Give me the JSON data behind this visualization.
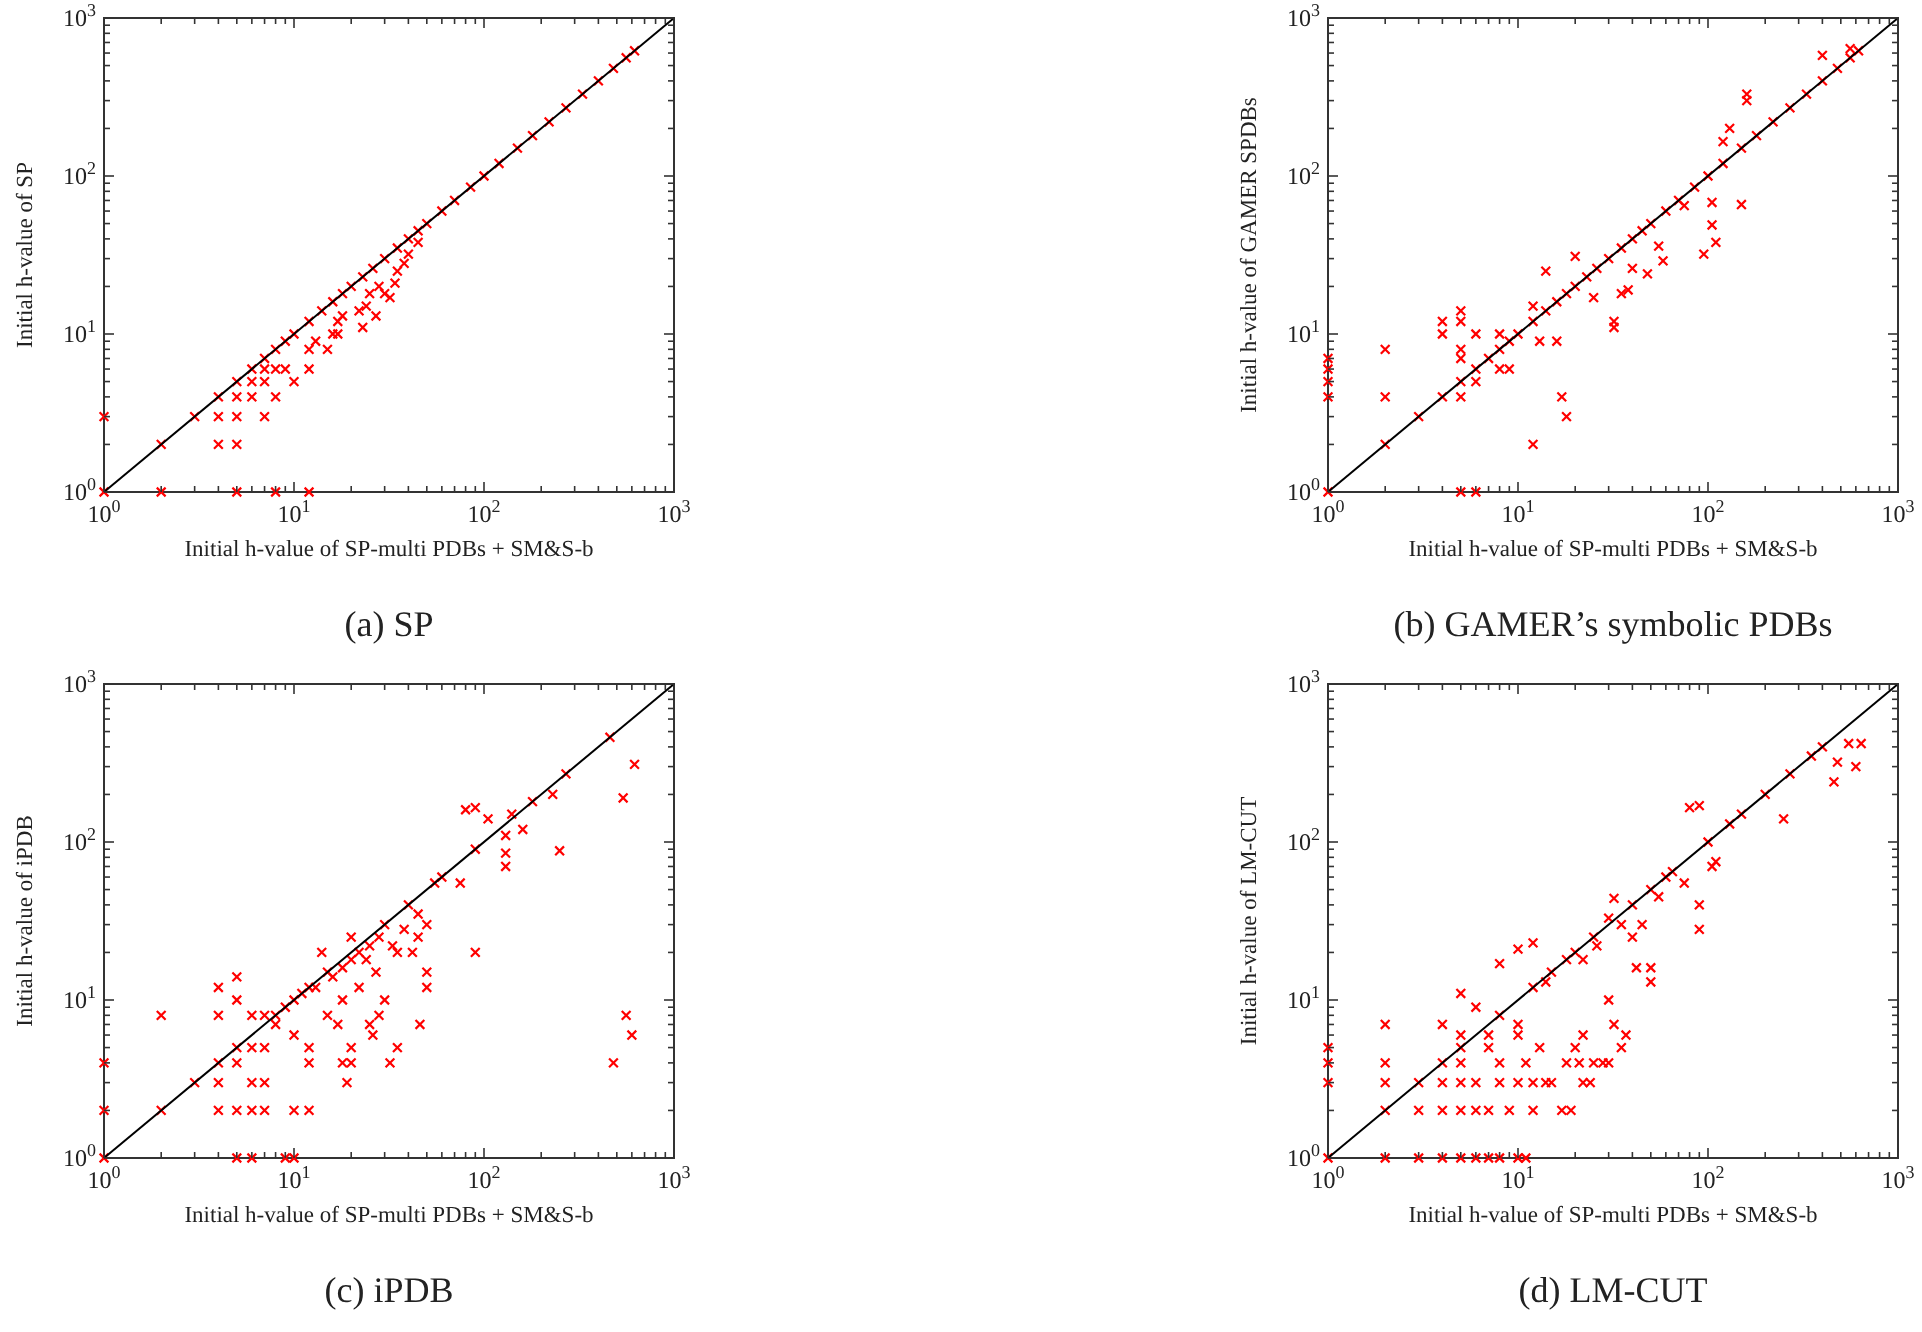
{
  "chart_data": [
    {
      "type": "scatter",
      "title": "(a) SP",
      "xlabel": "Initial h-value of SP-multi PDBs + SM&S-b",
      "ylabel": "Initial h-value of SP",
      "log": "xy",
      "xlim": [
        1,
        1000
      ],
      "ylim": [
        1,
        1000
      ],
      "xticks": [
        {
          "value": 1,
          "label": "10$^{0}$"
        },
        {
          "value": 2,
          "label": null
        },
        {
          "value": 3,
          "label": null
        },
        {
          "value": 4,
          "label": null
        },
        {
          "value": 5,
          "label": null
        },
        {
          "value": 6,
          "label": null
        },
        {
          "value": 7,
          "label": null
        },
        {
          "value": 8,
          "label": null
        },
        {
          "value": 9,
          "label": null
        },
        {
          "value": 10,
          "label": "10$^{1}$"
        },
        {
          "value": 20,
          "label": null
        },
        {
          "value": 30,
          "label": null
        },
        {
          "value": 40,
          "label": null
        },
        {
          "value": 50,
          "label": null
        },
        {
          "value": 60,
          "label": null
        },
        {
          "value": 70,
          "label": null
        },
        {
          "value": 80,
          "label": null
        },
        {
          "value": 90,
          "label": null
        },
        {
          "value": 100,
          "label": "10$^{2}$"
        },
        {
          "value": 200,
          "label": null
        },
        {
          "value": 300,
          "label": null
        },
        {
          "value": 400,
          "label": null
        },
        {
          "value": 500,
          "label": null
        },
        {
          "value": 600,
          "label": null
        },
        {
          "value": 700,
          "label": null
        },
        {
          "value": 800,
          "label": null
        },
        {
          "value": 900,
          "label": null
        },
        {
          "value": 1000,
          "label": "10$^{3}$"
        }
      ],
      "yticks": [
        {
          "value": 1,
          "label": "10$^{0}$"
        },
        {
          "value": 2,
          "label": null
        },
        {
          "value": 3,
          "label": null
        },
        {
          "value": 4,
          "label": null
        },
        {
          "value": 5,
          "label": null
        },
        {
          "value": 6,
          "label": null
        },
        {
          "value": 7,
          "label": null
        },
        {
          "value": 8,
          "label": null
        },
        {
          "value": 9,
          "label": null
        },
        {
          "value": 10,
          "label": "10$^{1}$"
        },
        {
          "value": 20,
          "label": null
        },
        {
          "value": 30,
          "label": null
        },
        {
          "value": 40,
          "label": null
        },
        {
          "value": 50,
          "label": null
        },
        {
          "value": 60,
          "label": null
        },
        {
          "value": 70,
          "label": null
        },
        {
          "value": 80,
          "label": null
        },
        {
          "value": 90,
          "label": null
        },
        {
          "value": 100,
          "label": "10$^{2}$"
        },
        {
          "value": 200,
          "label": null
        },
        {
          "value": 300,
          "label": null
        },
        {
          "value": 400,
          "label": null
        },
        {
          "value": 500,
          "label": null
        },
        {
          "value": 600,
          "label": null
        },
        {
          "value": 700,
          "label": null
        },
        {
          "value": 800,
          "label": null
        },
        {
          "value": 900,
          "label": null
        },
        {
          "value": 1000,
          "label": "10$^{3}$"
        }
      ],
      "series": [
        {
          "marker": "cross",
          "color": "#ff0000",
          "x": [
            1,
            2,
            3,
            4,
            5,
            6,
            7,
            8,
            9,
            10,
            12,
            14,
            16,
            18,
            20,
            23,
            26,
            30,
            35,
            40,
            45,
            50,
            60,
            70,
            85,
            100,
            120,
            150,
            180,
            220,
            270,
            330,
            400,
            480,
            560,
            620,
            1,
            2,
            5,
            8,
            12,
            4,
            5,
            4,
            5,
            7,
            5,
            6,
            8,
            6,
            7,
            10,
            7,
            8,
            9,
            12,
            12,
            13,
            15,
            16,
            17,
            17,
            18,
            22,
            23,
            24,
            27,
            30,
            32,
            34,
            28,
            25,
            35,
            40,
            45,
            38
          ],
          "values": [
            1,
            2,
            3,
            4,
            5,
            6,
            7,
            8,
            9,
            10,
            12,
            14,
            16,
            18,
            20,
            23,
            26,
            30,
            35,
            40,
            45,
            50,
            60,
            70,
            85,
            100,
            120,
            150,
            180,
            220,
            270,
            330,
            400,
            480,
            560,
            620,
            3,
            1,
            1,
            1,
            1,
            2,
            2,
            3,
            3,
            3,
            4,
            4,
            4,
            5,
            5,
            5,
            6,
            6,
            6,
            6,
            8,
            9,
            8,
            10,
            10,
            12,
            13,
            14,
            11,
            15,
            13,
            18,
            17,
            21,
            20,
            18,
            25,
            32,
            38,
            28
          ]
        },
        {
          "type": "line",
          "color": "#000000",
          "x": [
            1,
            1000
          ],
          "values": [
            1,
            1000
          ]
        }
      ]
    },
    {
      "type": "scatter",
      "title": "(b) GAMER’s symbolic PDBs",
      "xlabel": "Initial h-value of SP-multi PDBs + SM&S-b",
      "ylabel": "Initial h-value of GAMER SPDBs",
      "log": "xy",
      "xlim": [
        1,
        1000
      ],
      "ylim": [
        1,
        1000
      ],
      "xticks": [
        {
          "value": 1,
          "label": "10$^{0}$"
        },
        {
          "value": 2,
          "label": null
        },
        {
          "value": 3,
          "label": null
        },
        {
          "value": 4,
          "label": null
        },
        {
          "value": 5,
          "label": null
        },
        {
          "value": 6,
          "label": null
        },
        {
          "value": 7,
          "label": null
        },
        {
          "value": 8,
          "label": null
        },
        {
          "value": 9,
          "label": null
        },
        {
          "value": 10,
          "label": "10$^{1}$"
        },
        {
          "value": 20,
          "label": null
        },
        {
          "value": 30,
          "label": null
        },
        {
          "value": 40,
          "label": null
        },
        {
          "value": 50,
          "label": null
        },
        {
          "value": 60,
          "label": null
        },
        {
          "value": 70,
          "label": null
        },
        {
          "value": 80,
          "label": null
        },
        {
          "value": 90,
          "label": null
        },
        {
          "value": 100,
          "label": "10$^{2}$"
        },
        {
          "value": 200,
          "label": null
        },
        {
          "value": 300,
          "label": null
        },
        {
          "value": 400,
          "label": null
        },
        {
          "value": 500,
          "label": null
        },
        {
          "value": 600,
          "label": null
        },
        {
          "value": 700,
          "label": null
        },
        {
          "value": 800,
          "label": null
        },
        {
          "value": 900,
          "label": null
        },
        {
          "value": 1000,
          "label": "10$^{3}$"
        }
      ],
      "yticks": [
        {
          "value": 1,
          "label": "10$^{0}$"
        },
        {
          "value": 2,
          "label": null
        },
        {
          "value": 3,
          "label": null
        },
        {
          "value": 4,
          "label": null
        },
        {
          "value": 5,
          "label": null
        },
        {
          "value": 6,
          "label": null
        },
        {
          "value": 7,
          "label": null
        },
        {
          "value": 8,
          "label": null
        },
        {
          "value": 9,
          "label": null
        },
        {
          "value": 10,
          "label": "10$^{1}$"
        },
        {
          "value": 20,
          "label": null
        },
        {
          "value": 30,
          "label": null
        },
        {
          "value": 40,
          "label": null
        },
        {
          "value": 50,
          "label": null
        },
        {
          "value": 60,
          "label": null
        },
        {
          "value": 70,
          "label": null
        },
        {
          "value": 80,
          "label": null
        },
        {
          "value": 90,
          "label": null
        },
        {
          "value": 100,
          "label": "10$^{2}$"
        },
        {
          "value": 200,
          "label": null
        },
        {
          "value": 300,
          "label": null
        },
        {
          "value": 400,
          "label": null
        },
        {
          "value": 500,
          "label": null
        },
        {
          "value": 600,
          "label": null
        },
        {
          "value": 700,
          "label": null
        },
        {
          "value": 800,
          "label": null
        },
        {
          "value": 900,
          "label": null
        },
        {
          "value": 1000,
          "label": "10$^{3}$"
        }
      ],
      "series": [
        {
          "marker": "cross",
          "color": "#ff0000",
          "x": [
            1,
            2,
            3,
            4,
            5,
            6,
            7,
            8,
            9,
            10,
            12,
            14,
            16,
            18,
            20,
            23,
            26,
            30,
            35,
            40,
            45,
            50,
            60,
            70,
            85,
            100,
            120,
            150,
            180,
            220,
            270,
            330,
            400,
            480,
            560,
            620,
            1,
            1,
            1,
            1,
            2,
            2,
            4,
            4,
            5,
            5,
            5,
            5,
            5,
            5,
            6,
            6,
            6,
            8,
            8,
            9,
            12,
            12,
            13,
            14,
            16,
            17,
            18,
            20,
            25,
            32,
            32,
            35,
            38,
            40,
            48,
            55,
            58,
            75,
            95,
            105,
            105,
            110,
            150,
            120,
            130,
            160,
            160,
            400,
            560
          ],
          "values": [
            1,
            2,
            3,
            4,
            5,
            6,
            7,
            8,
            9,
            10,
            12,
            14,
            16,
            18,
            20,
            23,
            26,
            30,
            35,
            40,
            45,
            50,
            60,
            70,
            85,
            100,
            120,
            150,
            180,
            220,
            270,
            330,
            400,
            480,
            560,
            620,
            4,
            5,
            6,
            7,
            8,
            4,
            10,
            12,
            14,
            12,
            8,
            7,
            4,
            1,
            1,
            10,
            5,
            10,
            6,
            6,
            2,
            15,
            9,
            25,
            9,
            4,
            3,
            31,
            17,
            11,
            12,
            18,
            19,
            26,
            24,
            36,
            29,
            65,
            32,
            68,
            49,
            38,
            66,
            165,
            200,
            300,
            330,
            580,
            640
          ]
        },
        {
          "type": "line",
          "color": "#000000",
          "x": [
            1,
            1000
          ],
          "values": [
            1,
            1000
          ]
        }
      ]
    },
    {
      "type": "scatter",
      "title": "(c) iPDB",
      "xlabel": "Initial h-value of SP-multi PDBs + SM&S-b",
      "ylabel": "Initial h-value of iPDB",
      "log": "xy",
      "xlim": [
        1,
        1000
      ],
      "ylim": [
        1,
        1000
      ],
      "xticks": [
        {
          "value": 1,
          "label": "10$^{0}$"
        },
        {
          "value": 2,
          "label": null
        },
        {
          "value": 3,
          "label": null
        },
        {
          "value": 4,
          "label": null
        },
        {
          "value": 5,
          "label": null
        },
        {
          "value": 6,
          "label": null
        },
        {
          "value": 7,
          "label": null
        },
        {
          "value": 8,
          "label": null
        },
        {
          "value": 9,
          "label": null
        },
        {
          "value": 10,
          "label": "10$^{1}$"
        },
        {
          "value": 20,
          "label": null
        },
        {
          "value": 30,
          "label": null
        },
        {
          "value": 40,
          "label": null
        },
        {
          "value": 50,
          "label": null
        },
        {
          "value": 60,
          "label": null
        },
        {
          "value": 70,
          "label": null
        },
        {
          "value": 80,
          "label": null
        },
        {
          "value": 90,
          "label": null
        },
        {
          "value": 100,
          "label": "10$^{2}$"
        },
        {
          "value": 200,
          "label": null
        },
        {
          "value": 300,
          "label": null
        },
        {
          "value": 400,
          "label": null
        },
        {
          "value": 500,
          "label": null
        },
        {
          "value": 600,
          "label": null
        },
        {
          "value": 700,
          "label": null
        },
        {
          "value": 800,
          "label": null
        },
        {
          "value": 900,
          "label": null
        },
        {
          "value": 1000,
          "label": "10$^{3}$"
        }
      ],
      "yticks": [
        {
          "value": 1,
          "label": "10$^{0}$"
        },
        {
          "value": 2,
          "label": null
        },
        {
          "value": 3,
          "label": null
        },
        {
          "value": 4,
          "label": null
        },
        {
          "value": 5,
          "label": null
        },
        {
          "value": 6,
          "label": null
        },
        {
          "value": 7,
          "label": null
        },
        {
          "value": 8,
          "label": null
        },
        {
          "value": 9,
          "label": null
        },
        {
          "value": 10,
          "label": "10$^{1}$"
        },
        {
          "value": 20,
          "label": null
        },
        {
          "value": 30,
          "label": null
        },
        {
          "value": 40,
          "label": null
        },
        {
          "value": 50,
          "label": null
        },
        {
          "value": 60,
          "label": null
        },
        {
          "value": 70,
          "label": null
        },
        {
          "value": 80,
          "label": null
        },
        {
          "value": 90,
          "label": null
        },
        {
          "value": 100,
          "label": "10$^{2}$"
        },
        {
          "value": 200,
          "label": null
        },
        {
          "value": 300,
          "label": null
        },
        {
          "value": 400,
          "label": null
        },
        {
          "value": 500,
          "label": null
        },
        {
          "value": 600,
          "label": null
        },
        {
          "value": 700,
          "label": null
        },
        {
          "value": 800,
          "label": null
        },
        {
          "value": 900,
          "label": null
        },
        {
          "value": 1000,
          "label": "10$^{3}$"
        }
      ],
      "series": [
        {
          "marker": "cross",
          "color": "#ff0000",
          "x": [
            1,
            1,
            1,
            2,
            2,
            3,
            4,
            4,
            4,
            4,
            4,
            5,
            5,
            5,
            5,
            5,
            5,
            6,
            6,
            6,
            6,
            6,
            7,
            7,
            7,
            7,
            8,
            9,
            10,
            10,
            10,
            12,
            12,
            12,
            10,
            12,
            14,
            15,
            17,
            18,
            19,
            20,
            20,
            25,
            26,
            32,
            35,
            15,
            20,
            20,
            25,
            30,
            35,
            40,
            45,
            42,
            50,
            50,
            50,
            55,
            60,
            46,
            75,
            80,
            90,
            90,
            90,
            105,
            130,
            130,
            130,
            140,
            160,
            180,
            230,
            250,
            270,
            460,
            480,
            540,
            560,
            600,
            620,
            30,
            28,
            8,
            9,
            11,
            13,
            16,
            18,
            22,
            24,
            28,
            33,
            38,
            45,
            18,
            22,
            27
          ],
          "values": [
            1,
            2,
            4,
            2,
            8,
            3,
            2,
            3,
            4,
            8,
            12,
            1,
            2,
            4,
            5,
            10,
            14,
            1,
            2,
            3,
            5,
            8,
            2,
            3,
            5,
            8,
            7,
            1,
            1,
            2,
            6,
            2,
            5,
            4,
            10,
            12,
            20,
            8,
            7,
            4,
            3,
            5,
            4,
            7,
            6,
            4,
            5,
            15,
            18,
            25,
            22,
            30,
            20,
            40,
            35,
            20,
            30,
            15,
            12,
            55,
            60,
            7,
            55,
            160,
            165,
            20,
            90,
            140,
            110,
            85,
            70,
            150,
            120,
            180,
            200,
            88,
            270,
            460,
            4,
            190,
            8,
            6,
            310,
            10,
            8,
            8,
            9,
            11,
            12,
            14,
            16,
            20,
            18,
            25,
            22,
            28,
            25,
            10,
            12,
            15
          ]
        },
        {
          "type": "line",
          "color": "#000000",
          "x": [
            1,
            1000
          ],
          "values": [
            1,
            1000
          ]
        }
      ]
    },
    {
      "type": "scatter",
      "title": "(d) LM-CUT",
      "xlabel": "Initial h-value of SP-multi PDBs + SM&S-b",
      "ylabel": "Initial h-value of LM-CUT",
      "log": "xy",
      "xlim": [
        1,
        1000
      ],
      "ylim": [
        1,
        1000
      ],
      "xticks": [
        {
          "value": 1,
          "label": "10$^{0}$"
        },
        {
          "value": 2,
          "label": null
        },
        {
          "value": 3,
          "label": null
        },
        {
          "value": 4,
          "label": null
        },
        {
          "value": 5,
          "label": null
        },
        {
          "value": 6,
          "label": null
        },
        {
          "value": 7,
          "label": null
        },
        {
          "value": 8,
          "label": null
        },
        {
          "value": 9,
          "label": null
        },
        {
          "value": 10,
          "label": "10$^{1}$"
        },
        {
          "value": 20,
          "label": null
        },
        {
          "value": 30,
          "label": null
        },
        {
          "value": 40,
          "label": null
        },
        {
          "value": 50,
          "label": null
        },
        {
          "value": 60,
          "label": null
        },
        {
          "value": 70,
          "label": null
        },
        {
          "value": 80,
          "label": null
        },
        {
          "value": 90,
          "label": null
        },
        {
          "value": 100,
          "label": "10$^{2}$"
        },
        {
          "value": 200,
          "label": null
        },
        {
          "value": 300,
          "label": null
        },
        {
          "value": 400,
          "label": null
        },
        {
          "value": 500,
          "label": null
        },
        {
          "value": 600,
          "label": null
        },
        {
          "value": 700,
          "label": null
        },
        {
          "value": 800,
          "label": null
        },
        {
          "value": 900,
          "label": null
        },
        {
          "value": 1000,
          "label": "10$^{3}$"
        }
      ],
      "yticks": [
        {
          "value": 1,
          "label": "10$^{0}$"
        },
        {
          "value": 2,
          "label": null
        },
        {
          "value": 3,
          "label": null
        },
        {
          "value": 4,
          "label": null
        },
        {
          "value": 5,
          "label": null
        },
        {
          "value": 6,
          "label": null
        },
        {
          "value": 7,
          "label": null
        },
        {
          "value": 8,
          "label": null
        },
        {
          "value": 9,
          "label": null
        },
        {
          "value": 10,
          "label": "10$^{1}$"
        },
        {
          "value": 20,
          "label": null
        },
        {
          "value": 30,
          "label": null
        },
        {
          "value": 40,
          "label": null
        },
        {
          "value": 50,
          "label": null
        },
        {
          "value": 60,
          "label": null
        },
        {
          "value": 70,
          "label": null
        },
        {
          "value": 80,
          "label": null
        },
        {
          "value": 90,
          "label": null
        },
        {
          "value": 100,
          "label": "10$^{2}$"
        },
        {
          "value": 200,
          "label": null
        },
        {
          "value": 300,
          "label": null
        },
        {
          "value": 400,
          "label": null
        },
        {
          "value": 500,
          "label": null
        },
        {
          "value": 600,
          "label": null
        },
        {
          "value": 700,
          "label": null
        },
        {
          "value": 800,
          "label": null
        },
        {
          "value": 900,
          "label": null
        },
        {
          "value": 1000,
          "label": "10$^{3}$"
        }
      ],
      "series": [
        {
          "marker": "cross",
          "color": "#ff0000",
          "x": [
            1,
            1,
            1,
            1,
            2,
            2,
            2,
            2,
            2,
            3,
            3,
            3,
            4,
            4,
            4,
            4,
            4,
            5,
            5,
            5,
            5,
            5,
            5,
            5,
            6,
            6,
            6,
            6,
            7,
            7,
            7,
            7,
            8,
            8,
            8,
            8,
            9,
            10,
            10,
            10,
            10,
            11,
            11,
            12,
            12,
            13,
            14,
            15,
            17,
            19,
            18,
            20,
            21,
            22,
            24,
            22,
            25,
            28,
            30,
            32,
            35,
            37,
            30,
            42,
            50,
            50,
            8,
            10,
            12,
            15,
            18,
            20,
            25,
            30,
            32,
            40,
            45,
            50,
            60,
            75,
            80,
            90,
            90,
            90,
            100,
            105,
            110,
            130,
            150,
            200,
            250,
            270,
            350,
            400,
            460,
            480,
            550,
            600,
            640,
            12,
            14,
            22,
            26,
            35,
            40,
            55,
            65
          ],
          "values": [
            1,
            3,
            4,
            5,
            1,
            2,
            3,
            4,
            7,
            1,
            2,
            3,
            1,
            2,
            3,
            4,
            7,
            1,
            2,
            3,
            4,
            5,
            6,
            11,
            1,
            2,
            3,
            9,
            1,
            2,
            5,
            6,
            1,
            3,
            4,
            8,
            2,
            1,
            3,
            6,
            7,
            1,
            4,
            2,
            3,
            5,
            3,
            3,
            2,
            2,
            4,
            5,
            4,
            3,
            3,
            6,
            4,
            4,
            4,
            7,
            5,
            6,
            10,
            16,
            16,
            13,
            17,
            21,
            23,
            15,
            18,
            20,
            25,
            33,
            44,
            40,
            30,
            50,
            60,
            55,
            165,
            170,
            40,
            28,
            100,
            70,
            75,
            130,
            150,
            200,
            140,
            270,
            350,
            400,
            240,
            320,
            420,
            300,
            420,
            12,
            13,
            18,
            22,
            30,
            25,
            45,
            65
          ]
        },
        {
          "type": "line",
          "color": "#000000",
          "x": [
            1,
            1000
          ],
          "values": [
            1,
            1000
          ]
        }
      ]
    }
  ]
}
